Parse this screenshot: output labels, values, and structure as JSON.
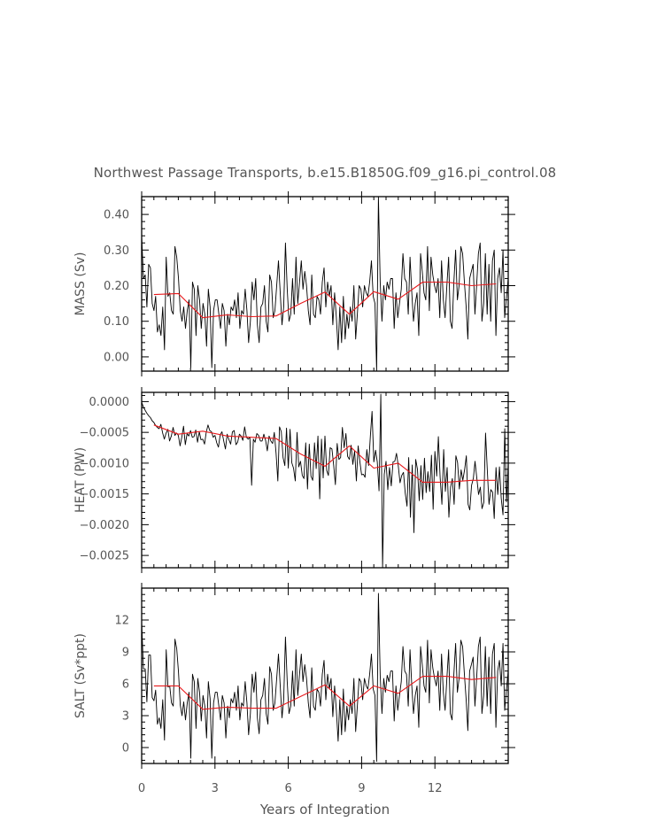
{
  "chart_data": {
    "type": "line",
    "title": "Northwest Passage Transports, b.e15.B1850G.f09_g16.pi_control.08",
    "xlabel": "Years of Integration",
    "xlim": [
      0,
      15
    ],
    "xticks": [
      0,
      3,
      6,
      9,
      12
    ],
    "xtick_labels": [
      "0",
      "3",
      "6",
      "9",
      "12"
    ],
    "colors": {
      "monthly": "#000000",
      "annual": "#e8191c",
      "text": "#555555",
      "axes": "#000000"
    },
    "panels": [
      {
        "name": "mass",
        "ylabel": "MASS (Sv)",
        "ylim": [
          -0.04,
          0.45
        ],
        "yticks": [
          0.0,
          0.1,
          0.2,
          0.3,
          0.4
        ],
        "ytick_labels": [
          "0.00",
          "0.10",
          "0.20",
          "0.30",
          "0.40"
        ],
        "annual_x": [
          0.5,
          1.5,
          2.5,
          3.5,
          4.5,
          5.5,
          6.5,
          7.5,
          8.5,
          9.5,
          10.5,
          11.5,
          12.5,
          13.5,
          14.5
        ],
        "annual_y": [
          0.175,
          0.178,
          0.11,
          0.118,
          0.113,
          0.115,
          0.15,
          0.182,
          0.12,
          0.183,
          0.162,
          0.21,
          0.21,
          0.2,
          0.205
        ],
        "monthly_y": [
          0.34,
          0.22,
          0.23,
          0.14,
          0.26,
          0.25,
          0.15,
          0.13,
          0.17,
          0.07,
          0.09,
          0.06,
          0.14,
          0.02,
          0.28,
          0.17,
          0.18,
          0.13,
          0.12,
          0.31,
          0.28,
          0.22,
          0.13,
          0.1,
          0.14,
          0.08,
          0.13,
          0.16,
          -0.03,
          0.21,
          0.19,
          0.06,
          0.2,
          0.16,
          0.08,
          0.15,
          0.12,
          0.03,
          0.19,
          0.14,
          -0.03,
          0.13,
          0.16,
          0.16,
          0.12,
          0.08,
          0.15,
          0.13,
          0.03,
          0.12,
          0.09,
          0.14,
          0.13,
          0.16,
          0.11,
          0.18,
          0.08,
          0.13,
          0.12,
          0.19,
          0.13,
          0.04,
          0.1,
          0.21,
          0.16,
          0.22,
          0.09,
          0.04,
          0.14,
          0.15,
          0.2,
          0.1,
          0.07,
          0.23,
          0.21,
          0.11,
          0.13,
          0.2,
          0.27,
          0.18,
          0.09,
          0.14,
          0.32,
          0.19,
          0.1,
          0.12,
          0.22,
          0.12,
          0.28,
          0.15,
          0.21,
          0.27,
          0.19,
          0.24,
          0.2,
          0.13,
          0.09,
          0.23,
          0.12,
          0.11,
          0.17,
          0.16,
          0.12,
          0.21,
          0.25,
          0.14,
          0.21,
          0.17,
          0.2,
          0.09,
          0.18,
          0.11,
          0.02,
          0.14,
          0.04,
          0.17,
          0.05,
          0.12,
          0.08,
          0.14,
          0.1,
          0.2,
          0.05,
          0.12,
          0.2,
          0.19,
          0.14,
          0.2,
          0.18,
          0.17,
          0.21,
          0.27,
          0.17,
          0.15,
          -0.04,
          0.45,
          0.21,
          0.1,
          0.2,
          0.16,
          0.21,
          0.19,
          0.22,
          0.22,
          0.08,
          0.18,
          0.11,
          0.15,
          0.19,
          0.29,
          0.22,
          0.21,
          0.12,
          0.28,
          0.18,
          0.1,
          0.15,
          0.18,
          0.06,
          0.29,
          0.24,
          0.18,
          0.16,
          0.31,
          0.13,
          0.28,
          0.23,
          0.2,
          0.18,
          0.22,
          0.11,
          0.27,
          0.16,
          0.11,
          0.2,
          0.28,
          0.1,
          0.08,
          0.21,
          0.3,
          0.16,
          0.2,
          0.31,
          0.29,
          0.21,
          0.14,
          0.05,
          0.22,
          0.24,
          0.26,
          0.12,
          0.2,
          0.29,
          0.32,
          0.1,
          0.15,
          0.29,
          0.12,
          0.26,
          0.1,
          0.27,
          0.3,
          0.06,
          0.22,
          0.25,
          0.18,
          0.3,
          0.11,
          0.17,
          0.22
        ]
      },
      {
        "name": "heat",
        "ylabel": "HEAT (PW)",
        "ylim": [
          -0.0027,
          0.00015
        ],
        "yticks": [
          0.0,
          -0.0005,
          -0.001,
          -0.0015,
          -0.002,
          -0.0025
        ],
        "ytick_labels": [
          "0.0000",
          "−0.0005",
          "−0.0010",
          "−0.0015",
          "−0.0020",
          "−0.0025"
        ],
        "annual_x": [
          0.5,
          1.5,
          2.5,
          3.5,
          4.5,
          5.5,
          6.5,
          7.5,
          8.5,
          9.5,
          10.5,
          11.5,
          12.5,
          13.5,
          14.5
        ],
        "annual_y": [
          -0.00038,
          -0.00053,
          -0.00048,
          -0.00056,
          -0.00058,
          -0.0006,
          -0.00085,
          -0.00105,
          -0.00072,
          -0.00108,
          -0.001,
          -0.00131,
          -0.00131,
          -0.00128,
          -0.00128
        ],
        "monthly_y": [
          -1e-05,
          -9e-05,
          -0.00014,
          -0.00019,
          -0.00023,
          -0.00026,
          -0.00031,
          -0.00034,
          -0.00039,
          -0.00042,
          -0.00044,
          -0.00037,
          -0.00051,
          -0.00061,
          -0.00051,
          -0.00045,
          -0.00064,
          -0.00056,
          -0.00042,
          -0.00055,
          -0.00051,
          -0.00055,
          -0.00072,
          -0.00058,
          -0.0004,
          -0.0007,
          -0.00052,
          -0.00056,
          -0.00047,
          -0.00058,
          -0.00057,
          -0.00046,
          -0.00066,
          -0.00049,
          -0.00062,
          -0.00061,
          -0.00069,
          -0.0005,
          -0.00038,
          -0.00047,
          -0.00049,
          -0.00058,
          -0.00055,
          -0.00067,
          -0.00074,
          -0.00054,
          -0.00049,
          -0.00064,
          -0.00077,
          -0.00053,
          -0.00062,
          -0.00069,
          -0.00049,
          -0.00047,
          -0.0007,
          -0.00066,
          -0.00053,
          -0.00056,
          -0.00063,
          -0.00041,
          -0.00058,
          -0.00061,
          -0.00058,
          -0.00136,
          -0.00061,
          -0.00066,
          -0.00052,
          -0.00055,
          -0.00064,
          -0.00064,
          -0.00053,
          -0.00063,
          -0.0008,
          -0.00056,
          -0.00064,
          -0.00068,
          -0.0005,
          -0.00084,
          -0.00129,
          -0.00041,
          -0.00049,
          -0.00091,
          -0.00104,
          -0.00043,
          -0.00108,
          -0.00045,
          -0.00099,
          -0.00108,
          -0.00129,
          -0.0005,
          -0.00106,
          -0.00097,
          -0.0012,
          -0.00125,
          -0.00067,
          -0.00142,
          -0.00069,
          -0.00121,
          -0.00128,
          -0.00067,
          -0.00109,
          -0.00056,
          -0.00158,
          -0.00061,
          -0.00124,
          -0.00056,
          -0.00112,
          -0.0012,
          -0.00075,
          -0.00077,
          -0.00104,
          -0.00135,
          -0.00068,
          -0.00094,
          -0.00091,
          -0.00042,
          -0.00075,
          -0.00052,
          -0.00089,
          -0.00094,
          -0.00071,
          -0.00102,
          -0.0008,
          -0.00129,
          -0.00072,
          -0.00097,
          -0.00119,
          -0.00118,
          -0.00123,
          -0.00078,
          -0.00104,
          -0.00056,
          -0.00016,
          -0.00098,
          -0.00079,
          -0.00098,
          -0.00145,
          0.00012,
          -0.0027,
          -0.00118,
          -0.00097,
          -0.00143,
          -0.00107,
          -0.00137,
          -0.00098,
          -0.00097,
          -0.00084,
          -0.00104,
          -0.00132,
          -0.0012,
          -0.00115,
          -0.00149,
          -0.0017,
          -0.00091,
          -0.00188,
          -0.00103,
          -0.00213,
          -0.00094,
          -0.0011,
          -0.00161,
          -0.00104,
          -0.00159,
          -0.00092,
          -0.00148,
          -0.00114,
          -0.00146,
          -0.00087,
          -0.00175,
          -0.00081,
          -0.00121,
          -0.00057,
          -0.00123,
          -0.00167,
          -0.00078,
          -0.00146,
          -0.00107,
          -0.00188,
          -0.00139,
          -0.00125,
          -0.00167,
          -0.00088,
          -0.00099,
          -0.00142,
          -0.00111,
          -0.00128,
          -0.00111,
          -0.00088,
          -0.00167,
          -0.00176,
          -0.00136,
          -0.00125,
          -0.00097,
          -0.00124,
          -0.00151,
          -0.00139,
          -0.00174,
          -0.00164,
          -0.00051,
          -0.00109,
          -0.00167,
          -0.00143,
          -0.00147,
          -0.0019,
          -0.00107,
          -0.00151,
          -0.00106,
          -0.00157,
          -0.00184,
          -0.00044,
          -0.00163,
          -0.00101
        ]
      },
      {
        "name": "salt",
        "ylabel": "SALT (Sv*ppt)",
        "ylim": [
          -1.5,
          15
        ],
        "yticks": [
          0,
          3,
          6,
          9,
          12
        ],
        "ytick_labels": [
          "0",
          "3",
          "6",
          "9",
          "12"
        ],
        "annual_x": [
          0.5,
          1.5,
          2.5,
          3.5,
          4.5,
          5.5,
          6.5,
          7.5,
          8.5,
          9.5,
          10.5,
          11.5,
          12.5,
          13.5,
          14.5
        ],
        "annual_y": [
          5.8,
          5.8,
          3.6,
          3.8,
          3.7,
          3.7,
          4.8,
          5.9,
          3.9,
          5.8,
          5.1,
          6.7,
          6.7,
          6.4,
          6.6
        ],
        "monthly_y": [
          11.8,
          7.4,
          7.4,
          4.3,
          8.7,
          8.7,
          4.7,
          4.4,
          5.4,
          2.2,
          2.8,
          1.8,
          4.5,
          0.7,
          9.2,
          5.7,
          5.8,
          4.2,
          3.9,
          10.2,
          9.3,
          7.1,
          4.0,
          3.0,
          4.3,
          2.6,
          4.2,
          5.2,
          -1.0,
          6.9,
          6.2,
          1.8,
          6.5,
          5.2,
          2.5,
          4.9,
          3.9,
          0.9,
          6.2,
          4.6,
          -1.0,
          4.2,
          5.2,
          5.2,
          3.9,
          2.6,
          4.9,
          4.2,
          0.9,
          3.9,
          2.8,
          4.6,
          4.2,
          5.2,
          3.5,
          5.8,
          2.6,
          4.2,
          3.9,
          6.2,
          4.2,
          1.2,
          3.2,
          6.9,
          5.2,
          7.1,
          2.8,
          1.3,
          4.5,
          4.9,
          6.5,
          3.2,
          2.2,
          7.6,
          6.9,
          3.5,
          4.2,
          6.5,
          8.8,
          5.8,
          2.8,
          4.5,
          10.4,
          6.2,
          3.2,
          3.9,
          7.2,
          3.9,
          9.2,
          4.9,
          6.9,
          8.8,
          6.2,
          7.8,
          6.5,
          4.2,
          2.8,
          7.5,
          3.9,
          3.5,
          5.5,
          5.2,
          3.9,
          6.9,
          8.2,
          4.5,
          6.9,
          5.5,
          6.5,
          2.9,
          5.8,
          3.5,
          0.6,
          4.5,
          1.2,
          5.5,
          1.5,
          3.9,
          2.6,
          4.5,
          3.2,
          6.5,
          1.5,
          3.9,
          6.5,
          6.2,
          4.5,
          6.5,
          5.8,
          5.5,
          6.9,
          8.8,
          5.5,
          4.9,
          -1.3,
          14.5,
          6.8,
          3.2,
          6.5,
          5.2,
          6.8,
          6.2,
          7.2,
          7.2,
          2.5,
          5.8,
          3.5,
          4.9,
          6.2,
          9.5,
          7.2,
          6.9,
          3.9,
          9.2,
          5.8,
          3.2,
          4.9,
          5.8,
          1.9,
          9.5,
          7.8,
          5.8,
          5.2,
          10.1,
          4.2,
          9.2,
          7.5,
          6.5,
          5.8,
          7.2,
          3.5,
          8.8,
          5.2,
          3.5,
          6.5,
          9.2,
          3.2,
          2.6,
          6.9,
          9.8,
          5.2,
          6.5,
          10.1,
          9.5,
          6.9,
          4.5,
          1.6,
          7.2,
          7.8,
          8.5,
          3.9,
          6.5,
          9.5,
          10.4,
          3.2,
          4.9,
          9.5,
          3.9,
          8.5,
          3.2,
          8.8,
          9.8,
          1.9,
          7.2,
          8.2,
          5.8,
          9.8,
          3.5,
          5.5,
          7.2
        ]
      }
    ]
  }
}
